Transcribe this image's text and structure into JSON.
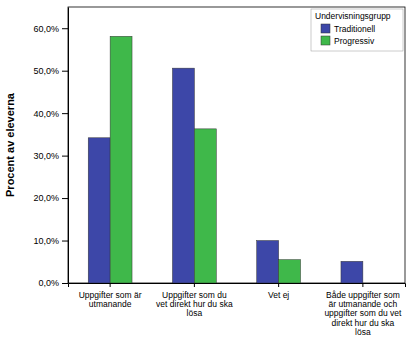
{
  "chart_data": {
    "type": "bar",
    "y_label": "Procent av eleverna",
    "legend_title": "Undervisningsgrupp",
    "legend": "top-right",
    "categories": [
      "Uppgifter som är utmanande",
      "Uppgifter som du vet direkt hur du ska lösa",
      "Vet ej",
      "Både uppgifter som är utmanande och uppgifter som du vet direkt hur du ska lösa"
    ],
    "series": [
      {
        "name": "Traditionell",
        "color": "#3d47a8",
        "values": [
          34.2,
          50.6,
          10.0,
          5.1
        ]
      },
      {
        "name": "Progressiv",
        "color": "#3fb84a",
        "values": [
          58.1,
          36.3,
          5.5,
          0
        ]
      }
    ],
    "ylim": [
      0,
      65
    ],
    "yticks": [
      {
        "value": 0,
        "label": "0,0%"
      },
      {
        "value": 10,
        "label": "10,0%"
      },
      {
        "value": 20,
        "label": "20,0%"
      },
      {
        "value": 30,
        "label": "30,0%"
      },
      {
        "value": 40,
        "label": "40,0%"
      },
      {
        "value": 50,
        "label": "50,0%"
      },
      {
        "value": 60,
        "label": "60,0%"
      }
    ],
    "grid": false
  }
}
